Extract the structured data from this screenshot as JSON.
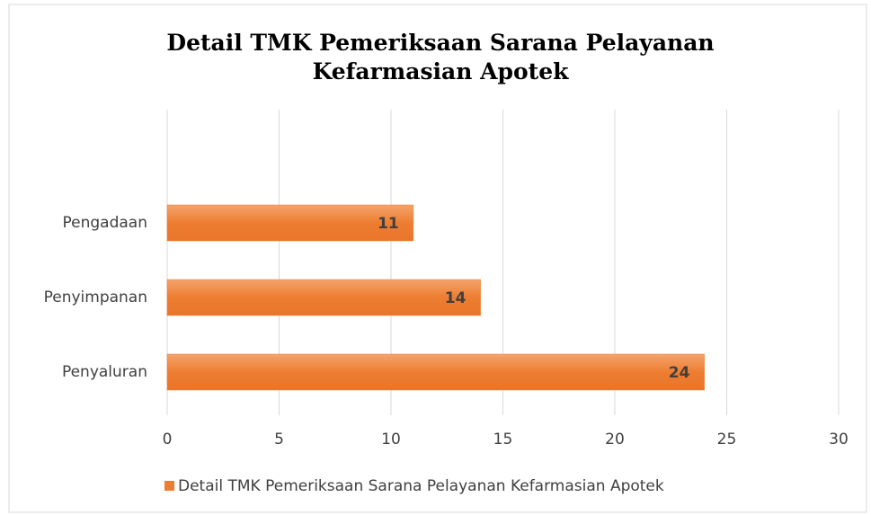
{
  "chart_data": {
    "type": "bar",
    "orientation": "horizontal",
    "title": "Detail TMK Pemeriksaan Sarana Pelayanan Kefarmasian Apotek",
    "categories": [
      "Pengadaan",
      "Penyimpanan",
      "Penyaluran"
    ],
    "series": [
      {
        "name": "Detail TMK Pemeriksaan Sarana Pelayanan Kefarmasian Apotek",
        "color": "#ed7d31",
        "values": [
          11,
          14,
          24
        ]
      }
    ],
    "xlim": [
      0,
      30
    ],
    "xticks": [
      0,
      5,
      10,
      15,
      20,
      25,
      30
    ],
    "grid": true,
    "legend": "bottom"
  }
}
